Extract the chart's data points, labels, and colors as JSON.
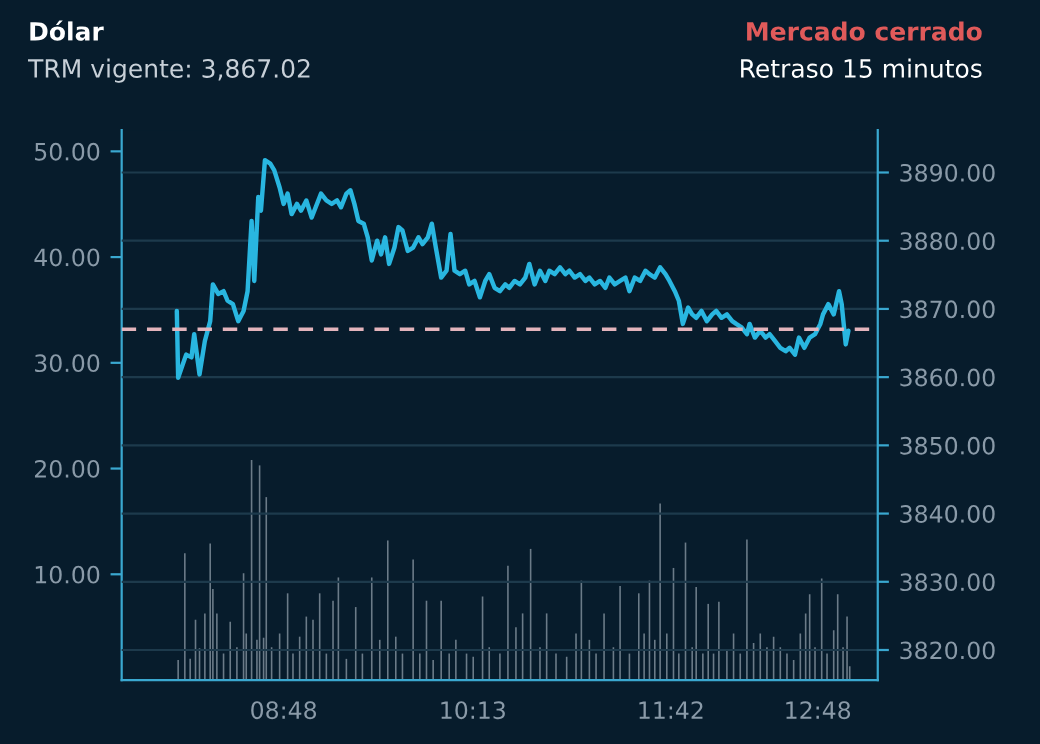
{
  "chart_data": {
    "type": "line",
    "title": "Dólar",
    "subtitle": "TRM vigente: 3,867.02",
    "annotations": [
      "Mercado cerrado",
      "Retraso 15 minutos"
    ],
    "xlim": [
      7.587,
      13.25
    ],
    "xticks": [
      {
        "value": 8.8,
        "label": "08:48"
      },
      {
        "value": 10.2167,
        "label": "10:13"
      },
      {
        "value": 11.7,
        "label": "11:42"
      },
      {
        "value": 12.8,
        "label": "12:48"
      }
    ],
    "ylim": [
      0,
      52
    ],
    "yticks": [
      {
        "value": 10,
        "label": "10.00"
      },
      {
        "value": 20,
        "label": "20.00"
      },
      {
        "value": 30,
        "label": "30.00"
      },
      {
        "value": 40,
        "label": "40.00"
      },
      {
        "value": 50,
        "label": "50.00"
      }
    ],
    "y2lim": [
      3815.6,
      3896.2
    ],
    "y2ticks": [
      {
        "value": 3820,
        "label": "3820.00"
      },
      {
        "value": 3830,
        "label": "3830.00"
      },
      {
        "value": 3840,
        "label": "3840.00"
      },
      {
        "value": 3850,
        "label": "3850.00"
      },
      {
        "value": 3860,
        "label": "3860.00"
      },
      {
        "value": 3870,
        "label": "3870.00"
      },
      {
        "value": 3880,
        "label": "3880.00"
      },
      {
        "value": 3890,
        "label": "3890.00"
      }
    ],
    "grid": true,
    "ref_lines": [
      {
        "axis": "y2",
        "value": 3867.02,
        "color": "#e3b4bc",
        "line_style": "dashed"
      }
    ],
    "series": [
      {
        "type": "bar",
        "axis": "y",
        "color": "#6b7b88",
        "x": [
          8.01,
          8.06,
          8.1,
          8.14,
          8.17,
          8.21,
          8.25,
          8.27,
          8.3,
          8.35,
          8.4,
          8.45,
          8.5,
          8.52,
          8.56,
          8.6,
          8.62,
          8.65,
          8.67,
          8.71,
          8.77,
          8.83,
          8.87,
          8.92,
          8.97,
          9.02,
          9.07,
          9.12,
          9.17,
          9.21,
          9.27,
          9.34,
          9.39,
          9.46,
          9.52,
          9.58,
          9.64,
          9.69,
          9.77,
          9.82,
          9.87,
          9.92,
          9.98,
          10.04,
          10.09,
          10.17,
          10.22,
          10.29,
          10.34,
          10.42,
          10.48,
          10.54,
          10.59,
          10.65,
          10.72,
          10.77,
          10.84,
          10.92,
          10.99,
          11.03,
          11.09,
          11.14,
          11.2,
          11.27,
          11.32,
          11.39,
          11.46,
          11.5,
          11.54,
          11.58,
          11.62,
          11.67,
          11.72,
          11.76,
          11.81,
          11.86,
          11.89,
          11.94,
          11.98,
          12.02,
          12.06,
          12.12,
          12.17,
          12.22,
          12.27,
          12.32,
          12.37,
          12.42,
          12.47,
          12.52,
          12.57,
          12.62,
          12.67,
          12.71,
          12.74,
          12.78,
          12.83,
          12.87,
          12.92,
          12.95,
          12.99,
          13.02,
          13.04
        ],
        "values": [
          1.9,
          12.0,
          2.0,
          5.7,
          3.0,
          6.3,
          12.9,
          8.6,
          6.3,
          2.5,
          5.5,
          3.1,
          10.1,
          4.4,
          20.8,
          3.8,
          20.3,
          4.0,
          17.3,
          3.1,
          4.4,
          8.2,
          2.5,
          4.1,
          6.0,
          5.7,
          8.2,
          2.5,
          7.5,
          9.7,
          2.0,
          6.9,
          2.5,
          9.7,
          3.8,
          13.2,
          4.1,
          2.5,
          11.4,
          2.5,
          7.5,
          1.9,
          7.5,
          2.5,
          3.8,
          2.5,
          2.2,
          7.9,
          3.1,
          2.5,
          10.8,
          5.0,
          6.3,
          12.4,
          3.1,
          6.3,
          2.5,
          2.2,
          4.4,
          9.4,
          3.8,
          2.5,
          6.3,
          3.1,
          8.9,
          2.5,
          8.2,
          4.4,
          9.4,
          3.8,
          16.7,
          4.4,
          10.6,
          2.5,
          13.0,
          3.1,
          8.8,
          2.5,
          7.2,
          2.5,
          7.4,
          2.8,
          4.4,
          2.5,
          13.3,
          3.5,
          4.4,
          3.1,
          4.1,
          3.1,
          2.5,
          1.9,
          4.4,
          6.3,
          8.1,
          3.1,
          9.6,
          2.5,
          4.7,
          8.1,
          3.1,
          6.0,
          1.3
        ]
      },
      {
        "axis": "y2",
        "color": "#29b6e0",
        "x": [
          8.0,
          8.01,
          8.07,
          8.11,
          8.13,
          8.17,
          8.21,
          8.25,
          8.27,
          8.31,
          8.35,
          8.38,
          8.42,
          8.46,
          8.5,
          8.53,
          8.56,
          8.58,
          8.61,
          8.63,
          8.66,
          8.7,
          8.73,
          8.77,
          8.8,
          8.83,
          8.86,
          8.9,
          8.93,
          8.97,
          9.01,
          9.04,
          9.08,
          9.12,
          9.16,
          9.2,
          9.23,
          9.27,
          9.3,
          9.33,
          9.36,
          9.4,
          9.43,
          9.46,
          9.5,
          9.53,
          9.56,
          9.59,
          9.63,
          9.66,
          9.69,
          9.73,
          9.77,
          9.81,
          9.84,
          9.88,
          9.91,
          9.94,
          9.98,
          10.02,
          10.05,
          10.08,
          10.12,
          10.16,
          10.19,
          10.23,
          10.27,
          10.31,
          10.34,
          10.38,
          10.42,
          10.46,
          10.49,
          10.53,
          10.57,
          10.61,
          10.64,
          10.68,
          10.72,
          10.76,
          10.79,
          10.83,
          10.87,
          10.91,
          10.94,
          10.98,
          11.02,
          11.06,
          11.09,
          11.13,
          11.17,
          11.21,
          11.24,
          11.28,
          11.32,
          11.36,
          11.39,
          11.43,
          11.47,
          11.51,
          11.54,
          11.58,
          11.62,
          11.66,
          11.69,
          11.73,
          11.76,
          11.79,
          11.83,
          11.86,
          11.89,
          11.93,
          11.97,
          12.01,
          12.04,
          12.08,
          12.12,
          12.16,
          12.19,
          12.23,
          12.27,
          12.29,
          12.33,
          12.37,
          12.41,
          12.44,
          12.48,
          12.52,
          12.56,
          12.59,
          12.63,
          12.66,
          12.7,
          12.74,
          12.78,
          12.82,
          12.84,
          12.88,
          12.92,
          12.96,
          12.98,
          13.01,
          13.03
        ],
        "values": [
          3869.7,
          3859.9,
          3863.3,
          3862.9,
          3866.3,
          3860.4,
          3865.3,
          3868.2,
          3873.6,
          3872.2,
          3872.6,
          3871.2,
          3870.7,
          3868.2,
          3869.7,
          3872.6,
          3882.9,
          3874.1,
          3886.4,
          3884.4,
          3891.8,
          3891.3,
          3890.3,
          3887.8,
          3885.4,
          3886.9,
          3883.9,
          3885.4,
          3884.4,
          3885.9,
          3883.4,
          3884.9,
          3886.9,
          3885.9,
          3885.4,
          3885.9,
          3884.9,
          3886.9,
          3887.4,
          3885.4,
          3882.9,
          3882.5,
          3880.5,
          3877.1,
          3880.0,
          3878.0,
          3880.5,
          3876.6,
          3879.0,
          3882.0,
          3881.5,
          3878.5,
          3879.0,
          3880.5,
          3879.5,
          3880.5,
          3882.5,
          3879.0,
          3874.6,
          3875.6,
          3881.0,
          3875.6,
          3875.1,
          3875.6,
          3873.6,
          3874.1,
          3871.7,
          3874.1,
          3875.1,
          3873.1,
          3872.6,
          3873.6,
          3873.1,
          3874.1,
          3873.6,
          3874.6,
          3876.6,
          3873.6,
          3875.6,
          3874.1,
          3875.6,
          3875.1,
          3876.1,
          3875.1,
          3875.6,
          3874.6,
          3875.1,
          3874.1,
          3874.6,
          3873.6,
          3874.1,
          3873.1,
          3874.6,
          3873.6,
          3874.1,
          3874.6,
          3872.6,
          3874.6,
          3874.1,
          3875.6,
          3875.1,
          3874.6,
          3876.1,
          3875.1,
          3874.1,
          3872.6,
          3871.2,
          3867.8,
          3870.2,
          3869.2,
          3868.7,
          3869.7,
          3868.2,
          3869.2,
          3869.7,
          3868.7,
          3869.2,
          3868.2,
          3867.8,
          3867.3,
          3866.3,
          3867.8,
          3865.8,
          3866.8,
          3865.8,
          3866.3,
          3865.3,
          3864.3,
          3863.8,
          3864.3,
          3863.3,
          3865.8,
          3864.3,
          3865.8,
          3866.3,
          3867.8,
          3869.2,
          3870.7,
          3869.2,
          3872.6,
          3870.7,
          3864.8,
          3866.8
        ]
      }
    ]
  }
}
